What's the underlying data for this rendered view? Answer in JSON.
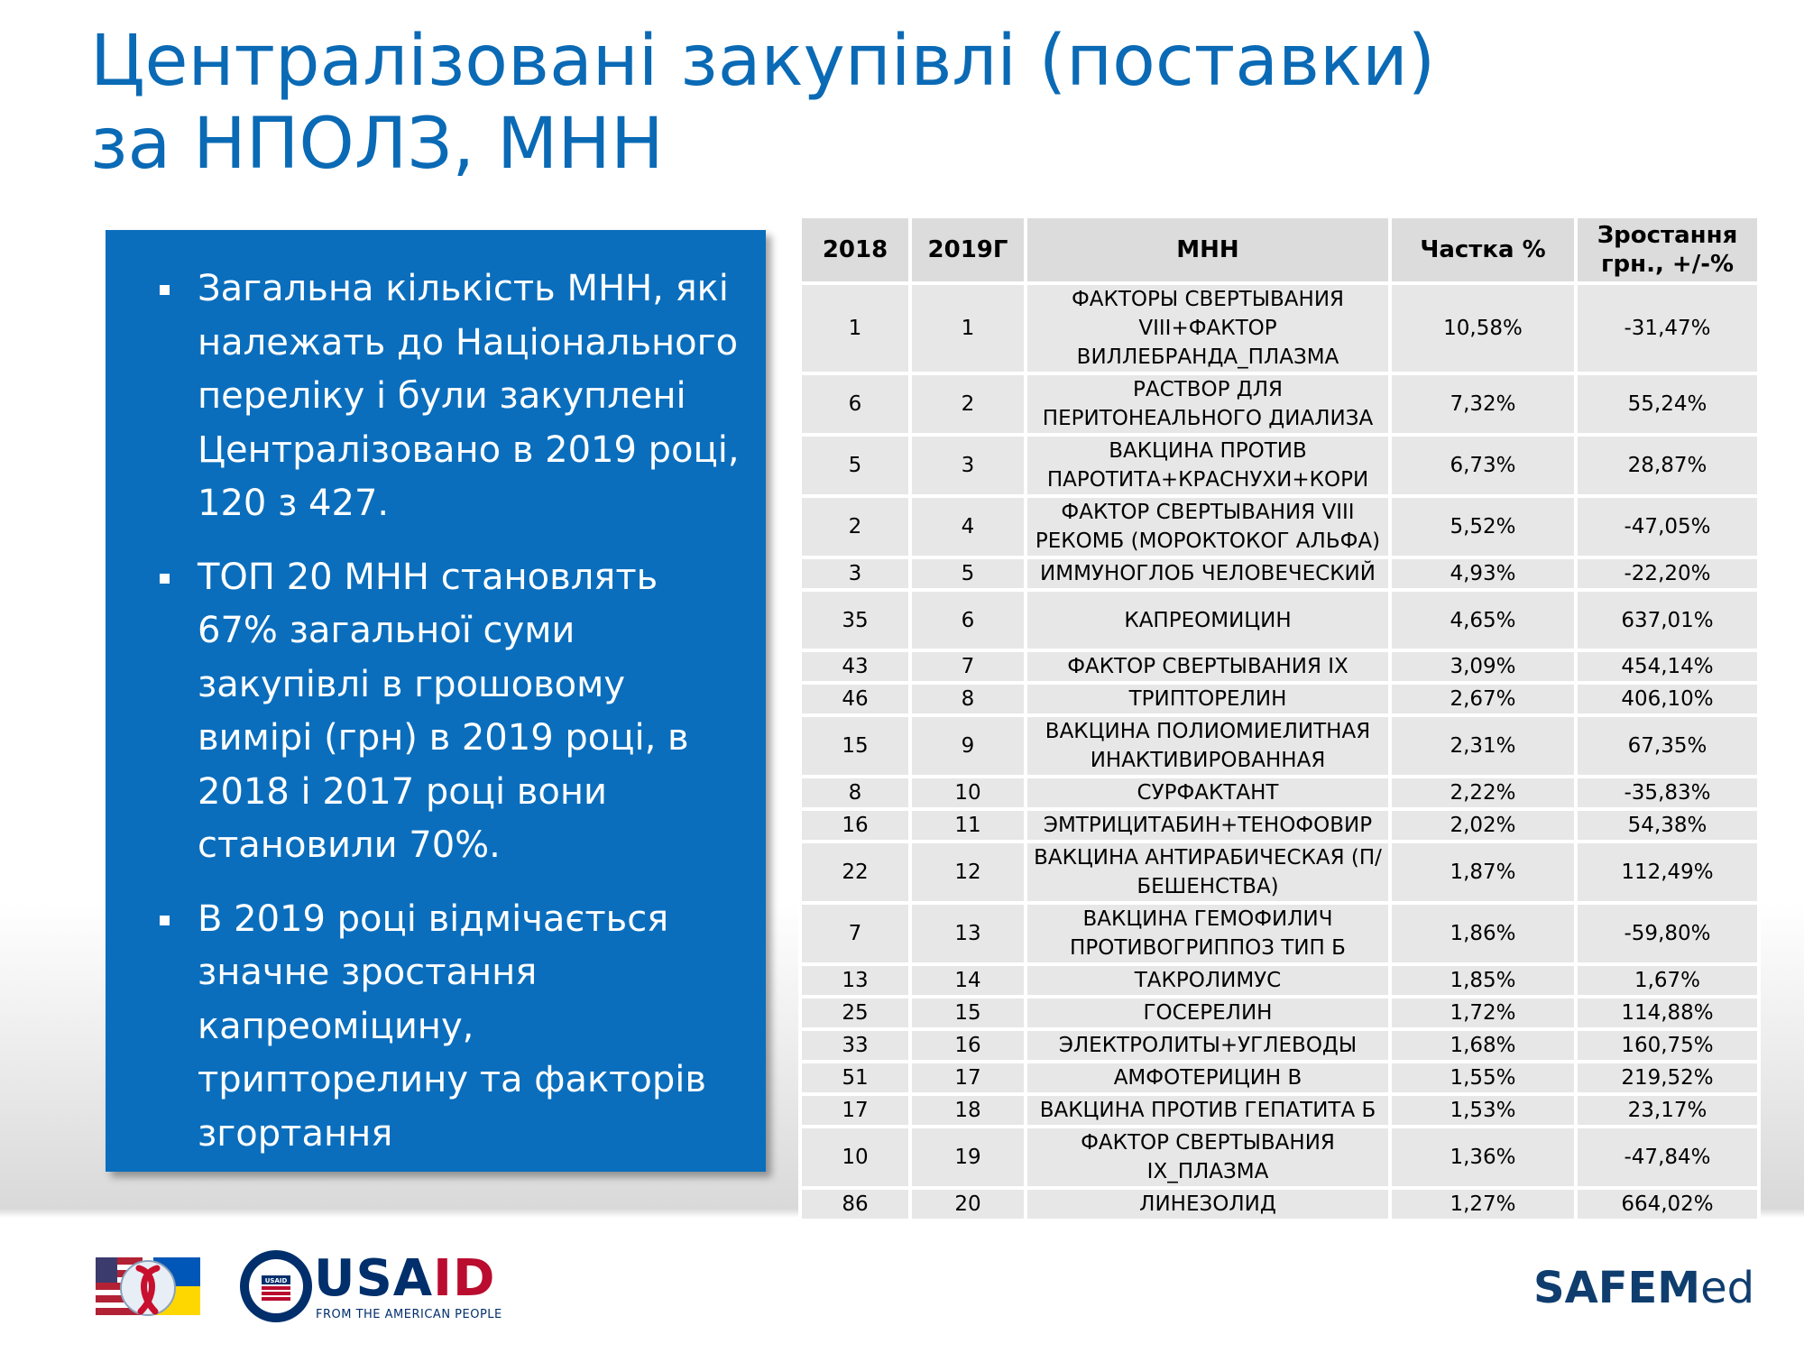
{
  "title": "Централізовані закупівлі (поставки) за НПОЛЗ, МНН",
  "bullets": [
    "Загальна кількість МНН,  які належать до Національного переліку і були закуплені Централізовано в 2019 році, 120 з 427.",
    "ТОП 20 МНН  становлять 67% загальної суми закупівлі в грошовому вимірі (грн) в 2019 році, в 2018 і 2017 році вони становили 70%.",
    "В 2019 році відмічається значне зростання капреоміцину, трипторелину та факторів згортання"
  ],
  "table": {
    "headers": [
      "2018",
      "2019Г",
      "МНН",
      "Частка %",
      "Зростання грн., +/-%"
    ],
    "rows": [
      [
        "1",
        "1",
        "ФАКТОРЫ СВЕРТЫВАНИЯ VIII+ФАКТОР ВИЛЛЕБРАНДА_ПЛАЗМА",
        "10,58%",
        "-31,47%"
      ],
      [
        "6",
        "2",
        "РАСТВОР ДЛЯ ПЕРИТОНЕАЛЬНОГО ДИАЛИЗА",
        "7,32%",
        "55,24%"
      ],
      [
        "5",
        "3",
        "ВАКЦИНА ПРОТИВ ПАРОТИТА+КРАСНУХИ+КОРИ",
        "6,73%",
        "28,87%"
      ],
      [
        "2",
        "4",
        "ФАКТОР СВЕРТЫВАНИЯ VIII РЕКОМБ (МОРОКТОКОГ АЛЬФА)",
        "5,52%",
        "-47,05%"
      ],
      [
        "3",
        "5",
        "ИММУНОГЛОБ ЧЕЛОВЕЧЕСКИЙ",
        "4,93%",
        "-22,20%"
      ],
      [
        "35",
        "6",
        "КАПРЕОМИЦИН",
        "4,65%",
        "637,01%"
      ],
      [
        "43",
        "7",
        "ФАКТОР СВЕРТЫВАНИЯ IX",
        "3,09%",
        "454,14%"
      ],
      [
        "46",
        "8",
        "ТРИПТОРЕЛИН",
        "2,67%",
        "406,10%"
      ],
      [
        "15",
        "9",
        "ВАКЦИНА ПОЛИОМИЕЛИТНАЯ ИНАКТИВИРОВАННАЯ",
        "2,31%",
        "67,35%"
      ],
      [
        "8",
        "10",
        "СУРФАКТАНТ",
        "2,22%",
        "-35,83%"
      ],
      [
        "16",
        "11",
        "ЭМТРИЦИТАБИН+ТЕНОФОВИР",
        "2,02%",
        "54,38%"
      ],
      [
        "22",
        "12",
        "ВАКЦИНА АНТИРАБИЧЕСКАЯ (П/БЕШЕНСТВА)",
        "1,87%",
        "112,49%"
      ],
      [
        "7",
        "13",
        "ВАКЦИНА ГЕМОФИЛИЧ ПРОТИВОГРИППОЗ ТИП Б",
        "1,86%",
        "-59,80%"
      ],
      [
        "13",
        "14",
        "ТАКРОЛИМУС",
        "1,85%",
        "1,67%"
      ],
      [
        "25",
        "15",
        "ГОСЕРЕЛИН",
        "1,72%",
        "114,88%"
      ],
      [
        "33",
        "16",
        "ЭЛЕКТРОЛИТЫ+УГЛЕВОДЫ",
        "1,68%",
        "160,75%"
      ],
      [
        "51",
        "17",
        "АМФОТЕРИЦИН В",
        "1,55%",
        "219,52%"
      ],
      [
        "17",
        "18",
        "ВАКЦИНА ПРОТИВ ГЕПАТИТА Б",
        "1,53%",
        "23,17%"
      ],
      [
        "10",
        "19",
        "ФАКТОР СВЕРТЫВАНИЯ IX_ПЛАЗМА",
        "1,36%",
        "-47,84%"
      ],
      [
        "86",
        "20",
        "ЛИНЕЗОЛИД",
        "1,27%",
        "664,02%"
      ]
    ]
  },
  "footer": {
    "usaid_prefix": "USA",
    "usaid_suffix": "ID",
    "usaid_tagline": "FROM THE AMERICAN PEOPLE",
    "usaid_seal_text": "USAID",
    "safemed_main": "SAFEM",
    "safemed_light": "ed"
  },
  "colors": {
    "title": "#0a6ab5",
    "bluebox": "#0a6ebd",
    "header_cell": "#dcdcdc",
    "body_cell": "#e7e7e7",
    "usaid_navy": "#002f6c",
    "usaid_red": "#ba0c2f"
  }
}
